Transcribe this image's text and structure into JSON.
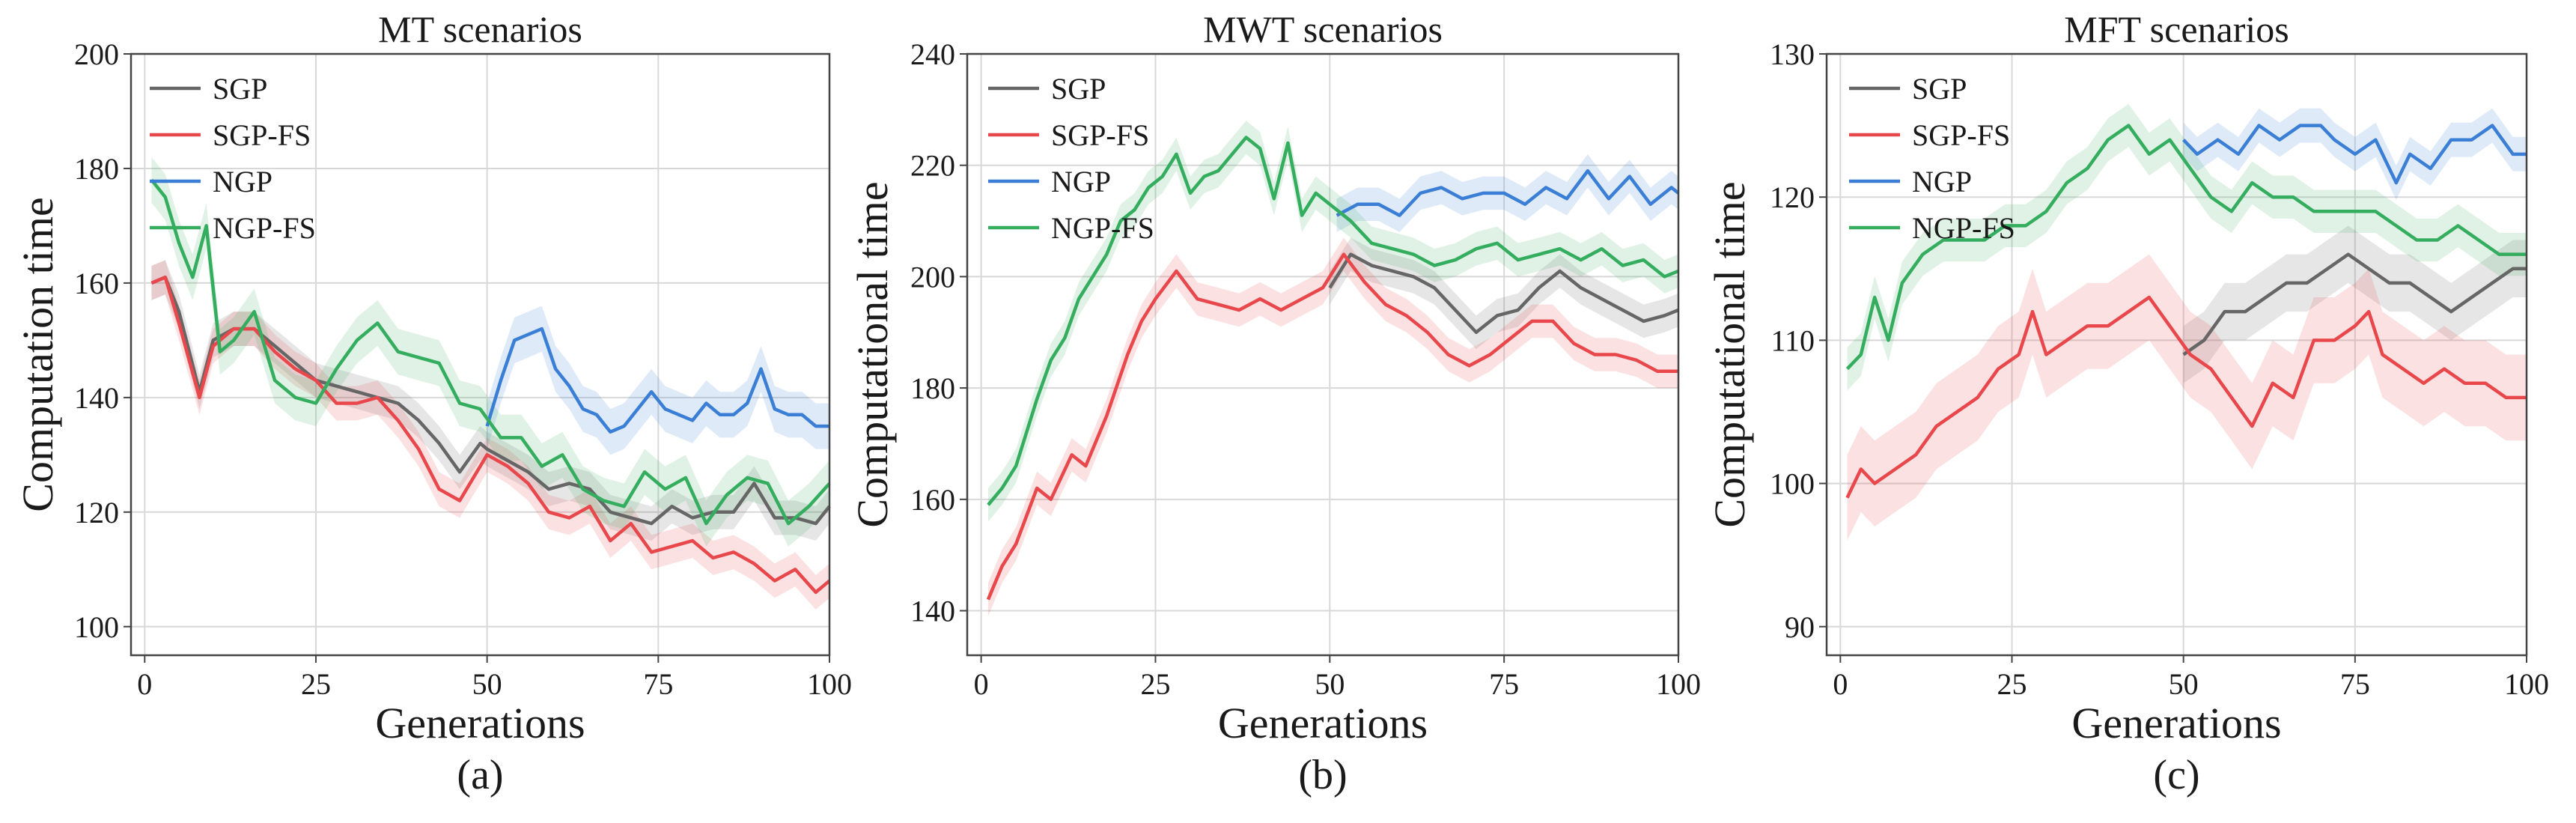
{
  "colors": {
    "SGP": "#666666",
    "SGP-FS": "#e8474b",
    "NGP": "#3a7fd5",
    "NGP-FS": "#35ad5f"
  },
  "chart_data": [
    {
      "type": "line",
      "title": "MT scenarios",
      "xlabel": "Generations",
      "ylabel": "Computation time",
      "sublabel": "(a)",
      "xlim": [
        -2,
        100
      ],
      "ylim": [
        95,
        200
      ],
      "xticks": [
        0,
        25,
        50,
        75,
        100
      ],
      "xtick_labels": [
        "0",
        "25",
        "50",
        "75",
        "100"
      ],
      "yticks": [
        100,
        120,
        140,
        160,
        180,
        200
      ],
      "ytick_labels": [
        "100",
        "120",
        "140",
        "160",
        "180",
        "200"
      ],
      "grid": true,
      "legend": [
        "SGP",
        "SGP-FS",
        "NGP",
        "NGP-FS"
      ],
      "legend_location": "upper-left",
      "series": [
        {
          "name": "SGP",
          "band": 3,
          "x": [
            1,
            3,
            5,
            8,
            10,
            13,
            16,
            19,
            22,
            25,
            28,
            31,
            34,
            37,
            40,
            43,
            46,
            49,
            50,
            53,
            56,
            59,
            62,
            65,
            68,
            71,
            74,
            77,
            80,
            83,
            86,
            89,
            92,
            95,
            98,
            100
          ],
          "y": [
            160,
            161,
            155,
            141,
            150,
            152,
            152,
            149,
            146,
            143,
            142,
            141,
            140,
            139,
            136,
            132,
            127,
            132,
            131,
            129,
            127,
            124,
            125,
            124,
            120,
            119,
            118,
            121,
            119,
            120,
            120,
            125,
            119,
            119,
            118,
            121
          ]
        },
        {
          "name": "SGP-FS",
          "band": 3,
          "x": [
            1,
            3,
            5,
            8,
            10,
            13,
            16,
            19,
            22,
            25,
            28,
            31,
            34,
            37,
            40,
            43,
            46,
            49,
            50,
            53,
            56,
            59,
            62,
            65,
            68,
            71,
            74,
            77,
            80,
            83,
            86,
            89,
            92,
            95,
            98,
            100
          ],
          "y": [
            160,
            161,
            153,
            140,
            149,
            152,
            152,
            148,
            145,
            143,
            139,
            139,
            140,
            136,
            131,
            124,
            122,
            128,
            130,
            128,
            125,
            120,
            119,
            121,
            115,
            118,
            113,
            114,
            115,
            112,
            113,
            111,
            108,
            110,
            106,
            108
          ]
        },
        {
          "name": "NGP",
          "band": 4,
          "x": [
            50,
            52,
            54,
            56,
            58,
            60,
            62,
            64,
            66,
            68,
            70,
            72,
            74,
            76,
            78,
            80,
            82,
            84,
            86,
            88,
            90,
            92,
            94,
            96,
            98,
            100
          ],
          "y": [
            135,
            143,
            150,
            151,
            152,
            145,
            142,
            138,
            137,
            134,
            135,
            138,
            141,
            138,
            137,
            136,
            139,
            137,
            137,
            139,
            145,
            138,
            137,
            137,
            135,
            135
          ]
        },
        {
          "name": "NGP-FS",
          "band": 4,
          "x": [
            1,
            3,
            5,
            7,
            9,
            11,
            13,
            16,
            19,
            22,
            25,
            28,
            31,
            34,
            37,
            40,
            43,
            46,
            49,
            52,
            55,
            58,
            61,
            64,
            67,
            70,
            73,
            76,
            79,
            82,
            85,
            88,
            91,
            94,
            97,
            100
          ],
          "y": [
            178,
            175,
            167,
            161,
            170,
            148,
            150,
            155,
            143,
            140,
            139,
            145,
            150,
            153,
            148,
            147,
            146,
            139,
            138,
            133,
            133,
            128,
            130,
            124,
            122,
            121,
            127,
            124,
            126,
            118,
            123,
            126,
            125,
            118,
            121,
            125
          ]
        }
      ]
    },
    {
      "type": "line",
      "title": "MWT scenarios",
      "xlabel": "Generations",
      "ylabel": "Computational time",
      "sublabel": "(b)",
      "xlim": [
        -2,
        100
      ],
      "ylim": [
        132,
        240
      ],
      "xticks": [
        0,
        25,
        50,
        75,
        100
      ],
      "xtick_labels": [
        "0",
        "25",
        "50",
        "75",
        "100"
      ],
      "yticks": [
        140,
        160,
        180,
        200,
        220,
        240
      ],
      "ytick_labels": [
        "140",
        "160",
        "180",
        "200",
        "220",
        "240"
      ],
      "grid": true,
      "legend": [
        "SGP",
        "SGP-FS",
        "NGP",
        "NGP-FS"
      ],
      "legend_location": "upper-left",
      "series": [
        {
          "name": "SGP",
          "band": 3,
          "x": [
            50,
            53,
            56,
            59,
            62,
            65,
            68,
            71,
            74,
            77,
            80,
            83,
            86,
            89,
            92,
            95,
            98,
            100
          ],
          "y": [
            198,
            204,
            202,
            201,
            200,
            198,
            194,
            190,
            193,
            194,
            198,
            201,
            198,
            196,
            194,
            192,
            193,
            194
          ]
        },
        {
          "name": "SGP-FS",
          "band": 3,
          "x": [
            1,
            3,
            5,
            8,
            10,
            13,
            15,
            18,
            21,
            23,
            25,
            28,
            31,
            34,
            37,
            40,
            43,
            46,
            49,
            52,
            55,
            58,
            61,
            64,
            67,
            70,
            73,
            76,
            79,
            82,
            85,
            88,
            91,
            94,
            97,
            100
          ],
          "y": [
            142,
            148,
            152,
            162,
            160,
            168,
            166,
            175,
            186,
            192,
            196,
            201,
            196,
            195,
            194,
            196,
            194,
            196,
            198,
            204,
            199,
            195,
            193,
            190,
            186,
            184,
            186,
            189,
            192,
            192,
            188,
            186,
            186,
            185,
            183,
            183
          ]
        },
        {
          "name": "NGP",
          "band": 3,
          "x": [
            51,
            54,
            57,
            60,
            63,
            66,
            69,
            72,
            75,
            78,
            81,
            84,
            87,
            90,
            93,
            96,
            99,
            100
          ],
          "y": [
            211,
            213,
            213,
            211,
            215,
            216,
            214,
            215,
            215,
            213,
            216,
            214,
            219,
            214,
            218,
            213,
            216,
            215
          ]
        },
        {
          "name": "NGP-FS",
          "band": 3,
          "x": [
            1,
            3,
            5,
            8,
            10,
            12,
            14,
            16,
            18,
            20,
            22,
            24,
            26,
            28,
            30,
            32,
            34,
            36,
            38,
            40,
            42,
            44,
            46,
            48,
            50,
            53,
            56,
            59,
            62,
            65,
            68,
            71,
            74,
            77,
            80,
            83,
            86,
            89,
            92,
            95,
            98,
            100
          ],
          "y": [
            159,
            162,
            166,
            178,
            185,
            189,
            196,
            200,
            204,
            210,
            212,
            216,
            218,
            222,
            215,
            218,
            219,
            222,
            225,
            223,
            214,
            224,
            211,
            215,
            213,
            210,
            206,
            205,
            204,
            202,
            203,
            205,
            206,
            203,
            204,
            205,
            203,
            205,
            202,
            203,
            200,
            201
          ]
        }
      ]
    },
    {
      "type": "line",
      "title": "MFT scenarios",
      "xlabel": "Generations",
      "ylabel": "Computational time",
      "sublabel": "(c)",
      "xlim": [
        -2,
        100
      ],
      "ylim": [
        88,
        130
      ],
      "xticks": [
        0,
        25,
        50,
        75,
        100
      ],
      "xtick_labels": [
        "0",
        "25",
        "50",
        "75",
        "100"
      ],
      "yticks": [
        90,
        100,
        110,
        120,
        130
      ],
      "ytick_labels": [
        "90",
        "100",
        "110",
        "120",
        "130"
      ],
      "grid": true,
      "legend": [
        "SGP",
        "SGP-FS",
        "NGP",
        "NGP-FS"
      ],
      "legend_location": "upper-left",
      "series": [
        {
          "name": "SGP",
          "band": 2,
          "x": [
            50,
            53,
            56,
            59,
            62,
            65,
            68,
            71,
            74,
            77,
            80,
            83,
            86,
            89,
            92,
            95,
            98,
            100
          ],
          "y": [
            109,
            110,
            112,
            112,
            113,
            114,
            114,
            115,
            116,
            115,
            114,
            114,
            113,
            112,
            113,
            114,
            115,
            115
          ]
        },
        {
          "name": "SGP-FS",
          "band": 3,
          "x": [
            1,
            3,
            5,
            8,
            11,
            14,
            17,
            20,
            23,
            26,
            28,
            30,
            33,
            36,
            39,
            42,
            45,
            48,
            51,
            54,
            57,
            60,
            63,
            66,
            69,
            72,
            75,
            77,
            79,
            82,
            85,
            88,
            91,
            94,
            97,
            100
          ],
          "y": [
            99,
            101,
            100,
            101,
            102,
            104,
            105,
            106,
            108,
            109,
            112,
            109,
            110,
            111,
            111,
            112,
            113,
            111,
            109,
            108,
            106,
            104,
            107,
            106,
            110,
            110,
            111,
            112,
            109,
            108,
            107,
            108,
            107,
            107,
            106,
            106
          ]
        },
        {
          "name": "NGP",
          "band": 1.2,
          "x": [
            50,
            52,
            55,
            58,
            61,
            64,
            67,
            70,
            72,
            75,
            78,
            81,
            83,
            86,
            89,
            92,
            95,
            98,
            100
          ],
          "y": [
            124,
            123,
            124,
            123,
            125,
            124,
            125,
            125,
            124,
            123,
            124,
            121,
            123,
            122,
            124,
            124,
            125,
            123,
            123
          ]
        },
        {
          "name": "NGP-FS",
          "band": 1.5,
          "x": [
            1,
            3,
            5,
            7,
            9,
            12,
            15,
            18,
            21,
            24,
            27,
            30,
            33,
            36,
            39,
            42,
            45,
            48,
            51,
            54,
            57,
            60,
            63,
            66,
            69,
            72,
            75,
            78,
            81,
            84,
            87,
            90,
            93,
            96,
            99,
            100
          ],
          "y": [
            108,
            109,
            113,
            110,
            114,
            116,
            117,
            117,
            117,
            118,
            118,
            119,
            121,
            122,
            124,
            125,
            123,
            124,
            122,
            120,
            119,
            121,
            120,
            120,
            119,
            119,
            119,
            119,
            118,
            117,
            117,
            118,
            117,
            116,
            116,
            116
          ]
        }
      ]
    }
  ]
}
